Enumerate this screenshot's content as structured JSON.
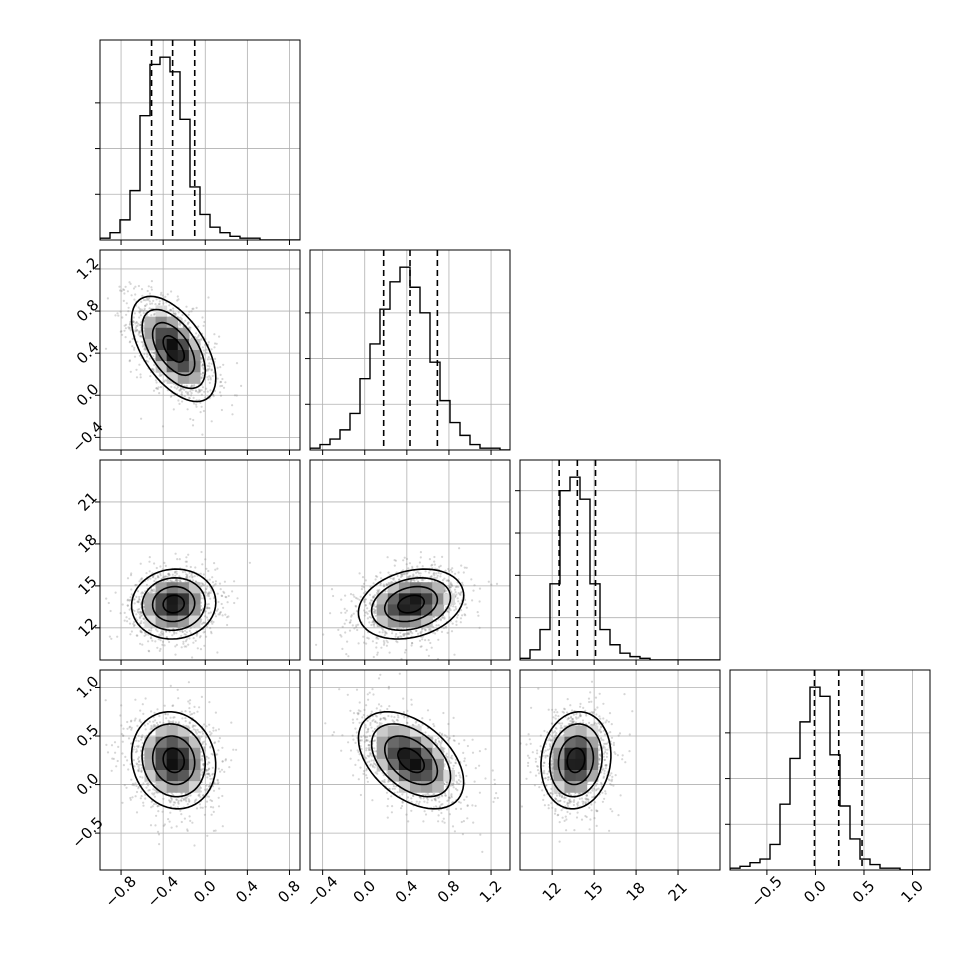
{
  "chart_data": {
    "type": "corner",
    "grid": true,
    "params": [
      {
        "ticks": [
          -0.8,
          -0.4,
          0.0,
          0.4,
          0.8
        ],
        "tick_labels": [
          "−0.8",
          "−0.4",
          "0.0",
          "0.4",
          "0.8"
        ],
        "range": [
          -1.0,
          0.9
        ],
        "mean": -0.3,
        "sd": 0.2,
        "quantiles": [
          -0.51,
          -0.31,
          -0.1
        ],
        "hist_counts": [
          1,
          4,
          11,
          27,
          68,
          96,
          100,
          92,
          66,
          29,
          14,
          7,
          4,
          2,
          1,
          1,
          0,
          0,
          0,
          0
        ]
      },
      {
        "ticks": [
          -0.4,
          0.0,
          0.4,
          0.8,
          1.2
        ],
        "tick_labels": [
          "−0.4",
          "0.0",
          "0.4",
          "0.8",
          "1.2"
        ],
        "range": [
          -0.52,
          1.38
        ],
        "mean": 0.44,
        "sd": 0.25,
        "quantiles": [
          0.18,
          0.43,
          0.69
        ],
        "hist_counts": [
          1,
          3,
          6,
          11,
          20,
          39,
          58,
          77,
          92,
          100,
          89,
          75,
          48,
          27,
          15,
          8,
          3,
          1,
          1,
          0
        ]
      },
      {
        "ticks": [
          12,
          15,
          18,
          21
        ],
        "tick_labels": [
          "12",
          "15",
          "18",
          "21"
        ],
        "range": [
          9.7,
          24.0
        ],
        "mean": 13.7,
        "sd": 1.25,
        "quantiles": [
          12.5,
          13.8,
          15.1
        ],
        "hist_counts": [
          1,
          6,
          18,
          45,
          100,
          108,
          95,
          45,
          18,
          9,
          4,
          2,
          1,
          0,
          0,
          0,
          0,
          0,
          0,
          0
        ]
      },
      {
        "ticks": [
          -0.5,
          0.0,
          0.5,
          1.0
        ],
        "tick_labels": [
          "−0.5",
          "0.0",
          "0.5",
          "1.0"
        ],
        "range": [
          -0.88,
          1.18
        ],
        "mean": 0.25,
        "sd": 0.25,
        "quantiles": [
          -0.01,
          0.24,
          0.48
        ],
        "hist_counts": [
          1,
          2,
          4,
          6,
          14,
          36,
          61,
          81,
          100,
          95,
          63,
          35,
          17,
          6,
          3,
          1,
          1,
          0,
          0,
          0
        ]
      }
    ],
    "correlations": [
      [
        1.0,
        -0.55,
        0.05,
        -0.1
      ],
      [
        -0.55,
        1.0,
        0.25,
        -0.45
      ],
      [
        0.05,
        0.25,
        1.0,
        0.1
      ],
      [
        -0.1,
        -0.45,
        0.1,
        1.0
      ]
    ],
    "contour_levels_sigma": [
      0.5,
      1.0,
      1.5,
      2.0
    ]
  }
}
